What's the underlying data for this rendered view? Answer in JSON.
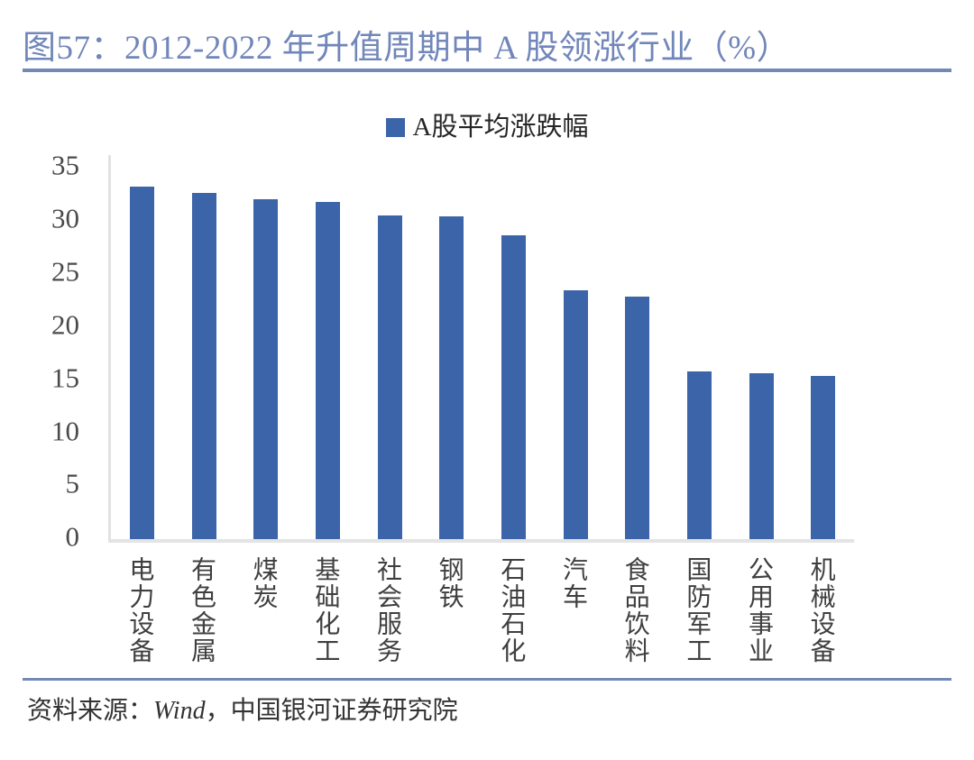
{
  "header": {
    "title": "图57：2012-2022 年升值周期中 A 股领涨行业（%）"
  },
  "legend": {
    "label": "A股平均涨跌幅",
    "swatch_color": "#3C64A8"
  },
  "chart_data": {
    "type": "bar",
    "title": "图57：2012-2022 年升值周期中 A 股领涨行业（%）",
    "series_name": "A股平均涨跌幅",
    "categories": [
      "电力设备",
      "有色金属",
      "煤炭",
      "基础化工",
      "社会服务",
      "钢铁",
      "石油石化",
      "汽车",
      "食品饮料",
      "国防军工",
      "公用事业",
      "机械设备"
    ],
    "values": [
      33.0,
      32.4,
      31.8,
      31.5,
      30.3,
      30.2,
      28.4,
      23.3,
      22.7,
      15.7,
      15.5,
      15.3
    ],
    "xlabel": "",
    "ylabel": "",
    "ylim": [
      0,
      35
    ],
    "yticks": [
      "35",
      "30",
      "25",
      "20",
      "15",
      "10",
      "5",
      "0"
    ],
    "grid": false,
    "legend_position": "top-center",
    "bar_color": "#3C64A8"
  },
  "footer": {
    "prefix": "资料来源：",
    "source": "Wind",
    "suffix": "，中国银河证券研究院"
  },
  "colors": {
    "bar": "#3C64A8",
    "title_text": "#7186B9",
    "rule": "#7288B5",
    "axis_line": "#E2E2E2",
    "tick_text": "#4A4A4A",
    "category_text": "#3F3F3F"
  }
}
